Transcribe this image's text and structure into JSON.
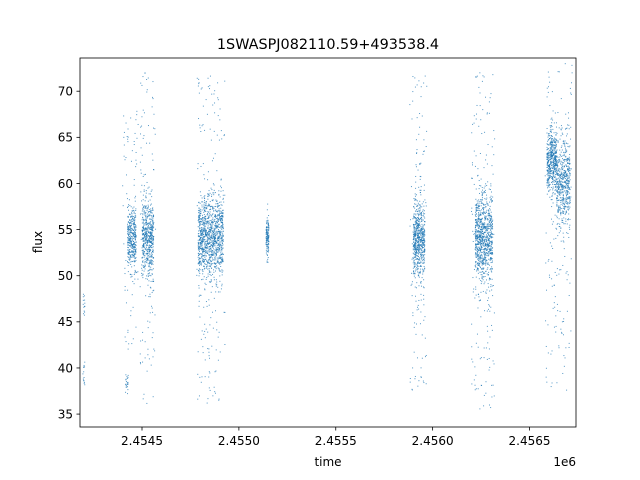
{
  "chart_data": {
    "type": "scatter",
    "title": "1SWASPJ082110.59+493538.4",
    "xlabel": "time",
    "ylabel": "flux",
    "x_offset_label": "1e6",
    "xlim": [
      2454180,
      2456740
    ],
    "ylim": [
      33.6,
      73.6
    ],
    "xticks": [
      2454500,
      2455000,
      2455500,
      2456000,
      2456500
    ],
    "xtick_labels": [
      "2.4545",
      "2.4550",
      "2.4555",
      "2.4560",
      "2.4565"
    ],
    "yticks": [
      35,
      40,
      45,
      50,
      55,
      60,
      65,
      70
    ],
    "ytick_labels": [
      "35",
      "40",
      "45",
      "50",
      "55",
      "60",
      "65",
      "70"
    ],
    "grid": false,
    "marker_color": "#1f77b4",
    "clusters": [
      {
        "x_range": [
          2454195,
          2454205
        ],
        "y_center": 47.0,
        "y_spread": 0.8,
        "count": 14
      },
      {
        "x_range": [
          2454195,
          2454205
        ],
        "y_center": 39.6,
        "y_spread": 0.8,
        "count": 14
      },
      {
        "x_range": [
          2454415,
          2454430
        ],
        "y_center": 38.5,
        "y_spread": 0.7,
        "count": 22
      },
      {
        "x_range": [
          2454425,
          2454470
        ],
        "y_center": 54.0,
        "y_spread": 1.6,
        "count": 360
      },
      {
        "x_range": [
          2454500,
          2454560
        ],
        "y_center": 54.0,
        "y_spread": 2.2,
        "count": 520
      },
      {
        "x_range": [
          2454790,
          2454920
        ],
        "y_center": 54.0,
        "y_spread": 2.2,
        "count": 1100
      },
      {
        "x_range": [
          2455140,
          2455155
        ],
        "y_center": 54.0,
        "y_spread": 1.2,
        "count": 130
      },
      {
        "x_range": [
          2455900,
          2455960
        ],
        "y_center": 54.0,
        "y_spread": 2.0,
        "count": 600
      },
      {
        "x_range": [
          2456220,
          2456310
        ],
        "y_center": 54.0,
        "y_spread": 2.4,
        "count": 850
      },
      {
        "x_range": [
          2456590,
          2456640
        ],
        "y_center": 62.5,
        "y_spread": 1.8,
        "count": 480
      },
      {
        "x_range": [
          2456640,
          2456710
        ],
        "y_center": 60.0,
        "y_spread": 2.3,
        "count": 520
      }
    ],
    "outliers": [
      {
        "x_range": [
          2454400,
          2454480
        ],
        "y_range": [
          42,
          68
        ],
        "count": 70
      },
      {
        "x_range": [
          2454490,
          2454570
        ],
        "y_range": [
          36,
          72
        ],
        "count": 110
      },
      {
        "x_range": [
          2454780,
          2454930
        ],
        "y_range": [
          36,
          72
        ],
        "count": 180
      },
      {
        "x_range": [
          2455880,
          2455970
        ],
        "y_range": [
          37,
          73
        ],
        "count": 130
      },
      {
        "x_range": [
          2456200,
          2456320
        ],
        "y_range": [
          35.5,
          72
        ],
        "count": 170
      },
      {
        "x_range": [
          2456580,
          2456720
        ],
        "y_range": [
          37,
          73
        ],
        "count": 150
      }
    ]
  }
}
